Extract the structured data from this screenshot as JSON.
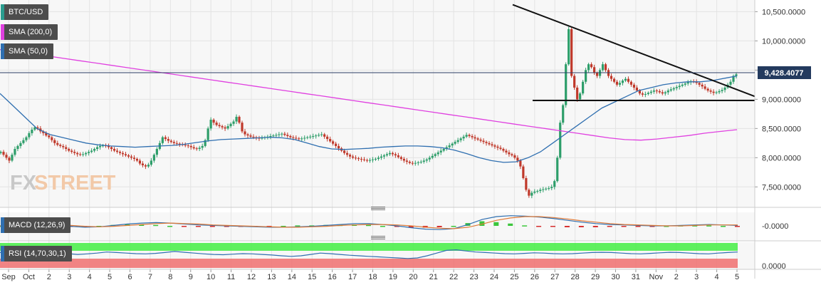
{
  "legends": {
    "pair": {
      "label": "BTC/USD",
      "color": "#2a9d8f"
    },
    "sma200": {
      "label": "SMA (200,0)",
      "color": "#e040e0"
    },
    "sma50": {
      "label": "SMA (50,0)",
      "color": "#2f6fb0"
    },
    "macd": {
      "label": "MACD (12,26,9)",
      "color": "#2f6fb0"
    },
    "rsi": {
      "label": "RSI (14,70,30,1)",
      "color": "#2f6fb0"
    }
  },
  "price_tag": "9,428.4077",
  "watermark": {
    "fx": "FX",
    "street": "STREET"
  },
  "colors": {
    "up": "#2e9e6a",
    "down": "#c0392b",
    "sma200": "#e040e0",
    "sma50": "#2f6fb0",
    "macd": "#2f6fb0",
    "signal": "#e07b39",
    "trend": "#111111",
    "rsi_over": "#44ee44",
    "rsi_under": "#f07070"
  },
  "x_axis_labels": [
    "Sep",
    "Oct",
    "2",
    "3",
    "4",
    "5",
    "6",
    "7",
    "8",
    "9",
    "10",
    "11",
    "12",
    "13",
    "14",
    "15",
    "16",
    "17",
    "18",
    "19",
    "20",
    "21",
    "22",
    "23",
    "24",
    "25",
    "26",
    "27",
    "28",
    "29",
    "30",
    "31",
    "Nov",
    "2",
    "3",
    "4",
    "5"
  ],
  "y_axis_labels": [
    "10,500.0000",
    "10,000.0000",
    "9,500.0000",
    "9,000.0000",
    "8,500.0000",
    "8,000.0000",
    "7,500.0000"
  ],
  "macd_axis_label": "-0.0000",
  "rsi_axis_label": "0.0000",
  "chart_data": [
    {
      "type": "candlestick",
      "title": "BTC/USD",
      "ylim": [
        7150,
        10700
      ],
      "y_ticks": [
        7500,
        8000,
        8500,
        9000,
        9500,
        10000,
        10500
      ],
      "last_price": 9428.4077,
      "closes": [
        8100,
        8050,
        8000,
        7950,
        8050,
        8150,
        8200,
        8250,
        8300,
        8350,
        8420,
        8480,
        8520,
        8500,
        8450,
        8420,
        8380,
        8350,
        8300,
        8250,
        8220,
        8200,
        8180,
        8150,
        8120,
        8100,
        8080,
        8060,
        8050,
        8060,
        8080,
        8100,
        8120,
        8150,
        8180,
        8200,
        8210,
        8200,
        8180,
        8150,
        8120,
        8100,
        8080,
        8060,
        8040,
        8020,
        8000,
        7980,
        7950,
        7900,
        7870,
        7850,
        7880,
        7950,
        8050,
        8150,
        8250,
        8350,
        8320,
        8290,
        8270,
        8250,
        8240,
        8230,
        8220,
        8210,
        8200,
        8180,
        8160,
        8150,
        8170,
        8200,
        8300,
        8500,
        8650,
        8600,
        8560,
        8540,
        8520,
        8500,
        8540,
        8580,
        8620,
        8700,
        8600,
        8450,
        8400,
        8380,
        8360,
        8350,
        8340,
        8330,
        8340,
        8350,
        8360,
        8370,
        8380,
        8390,
        8400,
        8410,
        8390,
        8370,
        8350,
        8340,
        8330,
        8320,
        8330,
        8340,
        8350,
        8360,
        8370,
        8380,
        8390,
        8400,
        8360,
        8320,
        8280,
        8240,
        8200,
        8160,
        8120,
        8080,
        8050,
        8020,
        8000,
        7990,
        7980,
        7970,
        7960,
        7950,
        7960,
        7970,
        7980,
        8000,
        8020,
        8040,
        8060,
        8080,
        8060,
        8040,
        8010,
        7980,
        7950,
        7930,
        7910,
        7900,
        7910,
        7920,
        7930,
        7950,
        7970,
        8000,
        8030,
        8060,
        8090,
        8120,
        8150,
        8180,
        8210,
        8240,
        8270,
        8300,
        8330,
        8360,
        8390,
        8370,
        8350,
        8330,
        8310,
        8290,
        8270,
        8250,
        8230,
        8210,
        8190,
        8170,
        8150,
        8120,
        8090,
        8060,
        8040,
        8000,
        7950,
        7850,
        7650,
        7450,
        7350,
        7400,
        7420,
        7430,
        7450,
        7460,
        7470,
        7480,
        7500,
        7600,
        8000,
        8600,
        8900,
        9600,
        10200,
        9400,
        9200,
        9000,
        9100,
        9300,
        9500,
        9600,
        9550,
        9450,
        9400,
        9500,
        9600,
        9500,
        9400,
        9350,
        9300,
        9250,
        9280,
        9320,
        9350,
        9300,
        9250,
        9200,
        9150,
        9100,
        9080,
        9090,
        9110,
        9130,
        9150,
        9140,
        9120,
        9100,
        9120,
        9150,
        9170,
        9190,
        9210,
        9230,
        9250,
        9270,
        9290,
        9310,
        9300,
        9280,
        9250,
        9220,
        9180,
        9150,
        9130,
        9110,
        9120,
        9140,
        9160,
        9200,
        9250,
        9300,
        9400,
        9428
      ],
      "sma200": [
        9850,
        9820,
        9780,
        9740,
        9700,
        9660,
        9620,
        9580,
        9540,
        9500,
        9460,
        9420,
        9380,
        9340,
        9300,
        9260,
        9220,
        9180,
        9140,
        9100,
        9060,
        9020,
        8980,
        8940,
        8900,
        8860,
        8820,
        8780,
        8740,
        8700,
        8660,
        8620,
        8580,
        8540,
        8500,
        8460,
        8420,
        8380,
        8340,
        8310,
        8300,
        8320,
        8350,
        8380,
        8420,
        8450,
        8480
      ],
      "sma50": [
        9100,
        8900,
        8700,
        8500,
        8400,
        8350,
        8300,
        8250,
        8220,
        8200,
        8190,
        8180,
        8190,
        8200,
        8210,
        8230,
        8260,
        8290,
        8310,
        8320,
        8330,
        8340,
        8350,
        8340,
        8310,
        8250,
        8190,
        8150,
        8140,
        8150,
        8160,
        8180,
        8190,
        8200,
        8200,
        8190,
        8170,
        8130,
        8070,
        8000,
        7950,
        7920,
        7930,
        8000,
        8100,
        8250,
        8400,
        8550,
        8700,
        8850,
        8950,
        9050,
        9150,
        9200,
        9250,
        9280,
        9300,
        9300,
        9320,
        9360,
        9400
      ]
    },
    {
      "type": "bar",
      "title": "MACD (12,26,9)",
      "series": [
        {
          "name": "MACD",
          "values": [
            0,
            0.2,
            0.4,
            0.3,
            0.1,
            -0.1,
            -0.3,
            -0.2,
            0.1,
            0.4,
            0.6,
            0.7,
            0.6,
            0.4,
            0.2,
            0.1,
            0,
            -0.1,
            -0.2,
            -0.3,
            -0.3,
            -0.2,
            -0.1,
            0.1,
            0.3,
            0.5,
            0.5,
            0.3,
            0,
            -0.4,
            -0.7,
            -0.8,
            -0.6,
            0.3,
            1.4,
            2.0,
            2.2,
            2.1,
            1.9,
            1.6,
            1.2,
            0.8,
            0.5,
            0.3,
            0.2,
            0.1,
            0,
            0,
            0.1,
            0.2,
            0.3,
            0.2,
            0.1
          ]
        },
        {
          "name": "Signal",
          "values": [
            0,
            0.1,
            0.2,
            0.3,
            0.2,
            0.1,
            -0.1,
            -0.2,
            -0.1,
            0.1,
            0.3,
            0.5,
            0.6,
            0.5,
            0.4,
            0.2,
            0.1,
            0,
            -0.1,
            -0.2,
            -0.3,
            -0.3,
            -0.2,
            -0.1,
            0.1,
            0.2,
            0.3,
            0.3,
            0.2,
            0,
            -0.3,
            -0.5,
            -0.6,
            -0.3,
            0.4,
            1.2,
            1.7,
            2.0,
            2.0,
            1.8,
            1.5,
            1.1,
            0.8,
            0.5,
            0.3,
            0.2,
            0.1,
            0,
            0,
            0.1,
            0.2,
            0.2,
            0.2
          ]
        }
      ]
    },
    {
      "type": "line",
      "title": "RSI (14,70,30,1)",
      "ylim": [
        0,
        100
      ],
      "series": [
        {
          "name": "RSI",
          "values": [
            62,
            60,
            58,
            57,
            60,
            65,
            62,
            58,
            55,
            57,
            60,
            64,
            62,
            60,
            58,
            57,
            59,
            62,
            66,
            63,
            60,
            57,
            55,
            54,
            56,
            58,
            57,
            55,
            53,
            50,
            48,
            50,
            55,
            60,
            58,
            55,
            52,
            50,
            48,
            46,
            44,
            42,
            40,
            42,
            50,
            60,
            70,
            72,
            68,
            64,
            62,
            60,
            58,
            57,
            59,
            61,
            60,
            58,
            57,
            58,
            60,
            62,
            63,
            62,
            60,
            58,
            57,
            59,
            61,
            63,
            62,
            60,
            58,
            57,
            60,
            62,
            64
          ]
        }
      ]
    }
  ]
}
